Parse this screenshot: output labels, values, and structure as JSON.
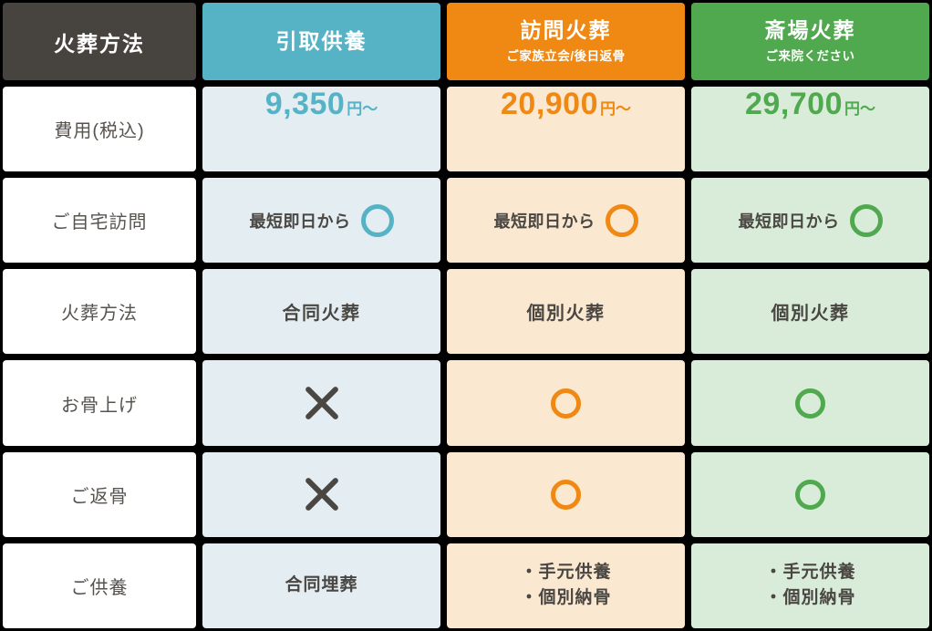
{
  "colors": {
    "grid_background": "#000000",
    "corner_header_bg": "#474440",
    "row_label_text": "#57534e",
    "cell_text": "#4a4743",
    "header_text": "#ffffff"
  },
  "header": {
    "corner_label": "火葬方法"
  },
  "row_labels": {
    "price": "費用(税込)",
    "home_visit": "ご自宅訪問",
    "method": "火葬方法",
    "bone_pickup": "お骨上げ",
    "bone_return": "ご返骨",
    "memorial": "ご供養"
  },
  "plans": [
    {
      "title": "引取供養",
      "accent_color": "#56b3c6",
      "cell_bg": "#e3edf2",
      "price_amount": "9,350",
      "price_unit": "円〜",
      "home_visit_text": "最短即日から",
      "home_visit_mark": "circle",
      "cremation_method": "合同火葬",
      "bone_pickup_mark": "cross",
      "bone_return_mark": "cross",
      "memorial_lines": [
        "合同埋葬"
      ]
    },
    {
      "title": "訪問火葬",
      "subtitle": "ご家族立会/後日返骨",
      "accent_color": "#ef8914",
      "cell_bg": "#fbe8d1",
      "price_amount": "20,900",
      "price_unit": "円〜",
      "home_visit_text": "最短即日から",
      "home_visit_mark": "circle",
      "cremation_method": "個別火葬",
      "bone_pickup_mark": "circle",
      "bone_return_mark": "circle",
      "memorial_lines": [
        "・手元供養",
        "・個別納骨"
      ]
    },
    {
      "title": "斎場火葬",
      "subtitle": "ご来院ください",
      "accent_color": "#51a94f",
      "cell_bg": "#d9ecd9",
      "price_amount": "29,700",
      "price_unit": "円〜",
      "home_visit_text": "最短即日から",
      "home_visit_mark": "circle",
      "cremation_method": "個別火葬",
      "bone_pickup_mark": "circle",
      "bone_return_mark": "circle",
      "memorial_lines": [
        "・手元供養",
        "・個別納骨"
      ]
    }
  ]
}
